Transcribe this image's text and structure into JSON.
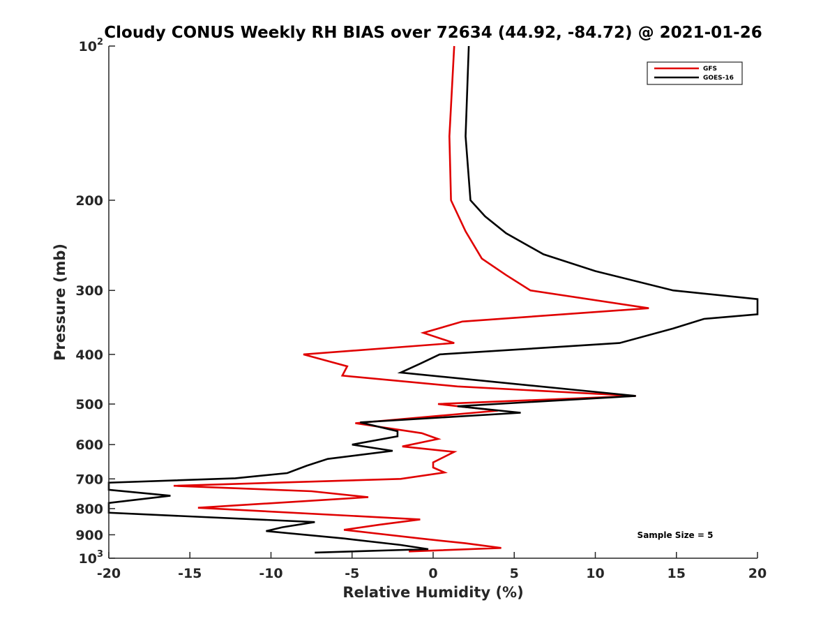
{
  "chart_data": {
    "type": "line",
    "title": "Cloudy CONUS Weekly RH BIAS over 72634 (44.92, -84.72) @ 2021-01-26",
    "xlabel": "Relative Humidity (%)",
    "ylabel": "Pressure (mb)",
    "xlim": [
      -20,
      20
    ],
    "ylim": [
      100,
      1000
    ],
    "y_scale": "log",
    "y_reversed": true,
    "x_ticks": [
      "-20",
      "-15",
      "-10",
      "-5",
      "0",
      "5",
      "10",
      "15",
      "20"
    ],
    "y_ticks": [
      {
        "value": 100,
        "label": "10",
        "exp": "2"
      },
      {
        "value": 200,
        "label": "200",
        "exp": ""
      },
      {
        "value": 300,
        "label": "300",
        "exp": ""
      },
      {
        "value": 400,
        "label": "400",
        "exp": ""
      },
      {
        "value": 500,
        "label": "500",
        "exp": ""
      },
      {
        "value": 600,
        "label": "600",
        "exp": ""
      },
      {
        "value": 700,
        "label": "700",
        "exp": ""
      },
      {
        "value": 800,
        "label": "800",
        "exp": ""
      },
      {
        "value": 900,
        "label": "900",
        "exp": ""
      },
      {
        "value": 1000,
        "label": "10",
        "exp": "3"
      }
    ],
    "grid": false,
    "legend_position": "top-right",
    "series": [
      {
        "name": "GFS",
        "color": "#e00000",
        "points": [
          {
            "x": 1.3,
            "y": 100
          },
          {
            "x": 1.0,
            "y": 150
          },
          {
            "x": 1.1,
            "y": 200
          },
          {
            "x": 2.0,
            "y": 230
          },
          {
            "x": 3.0,
            "y": 260
          },
          {
            "x": 4.5,
            "y": 280
          },
          {
            "x": 6.0,
            "y": 300
          },
          {
            "x": 13.3,
            "y": 325
          },
          {
            "x": 1.8,
            "y": 345
          },
          {
            "x": -0.6,
            "y": 363
          },
          {
            "x": 1.3,
            "y": 380
          },
          {
            "x": -8.0,
            "y": 400
          },
          {
            "x": -5.3,
            "y": 422
          },
          {
            "x": -5.6,
            "y": 440
          },
          {
            "x": 1.5,
            "y": 462
          },
          {
            "x": 12.5,
            "y": 482
          },
          {
            "x": 0.3,
            "y": 500
          },
          {
            "x": 4.0,
            "y": 515
          },
          {
            "x": -4.8,
            "y": 545
          },
          {
            "x": -0.7,
            "y": 570
          },
          {
            "x": 0.3,
            "y": 585
          },
          {
            "x": -1.9,
            "y": 605
          },
          {
            "x": 1.3,
            "y": 620
          },
          {
            "x": 0.0,
            "y": 650
          },
          {
            "x": 0.0,
            "y": 665
          },
          {
            "x": 0.7,
            "y": 680
          },
          {
            "x": -2.0,
            "y": 700
          },
          {
            "x": -16.0,
            "y": 722
          },
          {
            "x": -7.5,
            "y": 740
          },
          {
            "x": -4.0,
            "y": 760
          },
          {
            "x": -14.5,
            "y": 797
          },
          {
            "x": -0.8,
            "y": 840
          },
          {
            "x": -3.3,
            "y": 860
          },
          {
            "x": -5.5,
            "y": 880
          },
          {
            "x": -0.8,
            "y": 915
          },
          {
            "x": 2.0,
            "y": 935
          },
          {
            "x": 4.2,
            "y": 955
          },
          {
            "x": -1.5,
            "y": 970
          }
        ]
      },
      {
        "name": "GOES-16",
        "color": "#000000",
        "points": [
          {
            "x": 2.2,
            "y": 100
          },
          {
            "x": 2.0,
            "y": 150
          },
          {
            "x": 2.3,
            "y": 200
          },
          {
            "x": 3.2,
            "y": 215
          },
          {
            "x": 4.5,
            "y": 232
          },
          {
            "x": 6.8,
            "y": 255
          },
          {
            "x": 10.0,
            "y": 275
          },
          {
            "x": 14.8,
            "y": 300
          },
          {
            "x": 20.0,
            "y": 312
          },
          {
            "x": 20.0,
            "y": 334
          },
          {
            "x": 16.7,
            "y": 341
          },
          {
            "x": 14.8,
            "y": 356
          },
          {
            "x": 11.5,
            "y": 380
          },
          {
            "x": 0.4,
            "y": 400
          },
          {
            "x": -0.8,
            "y": 417
          },
          {
            "x": -2.0,
            "y": 434
          },
          {
            "x": 12.5,
            "y": 482
          },
          {
            "x": 1.5,
            "y": 505
          },
          {
            "x": 5.4,
            "y": 520
          },
          {
            "x": -4.5,
            "y": 543
          },
          {
            "x": -2.2,
            "y": 565
          },
          {
            "x": -2.2,
            "y": 578
          },
          {
            "x": -5.0,
            "y": 600
          },
          {
            "x": -2.5,
            "y": 617
          },
          {
            "x": -6.5,
            "y": 640
          },
          {
            "x": -7.8,
            "y": 660
          },
          {
            "x": -9.0,
            "y": 682
          },
          {
            "x": -12.2,
            "y": 698
          },
          {
            "x": -20.0,
            "y": 712
          },
          {
            "x": -20.0,
            "y": 735
          },
          {
            "x": -16.2,
            "y": 755
          },
          {
            "x": -20.0,
            "y": 780
          },
          {
            "x": -20.0,
            "y": 815
          },
          {
            "x": -7.3,
            "y": 850
          },
          {
            "x": -9.3,
            "y": 870
          },
          {
            "x": -10.3,
            "y": 885
          },
          {
            "x": -5.5,
            "y": 915
          },
          {
            "x": -2.0,
            "y": 942
          },
          {
            "x": -0.3,
            "y": 960
          },
          {
            "x": -7.3,
            "y": 975
          }
        ]
      }
    ],
    "legend": [
      {
        "label": "GFS",
        "color": "#e00000"
      },
      {
        "label": "GOES-16",
        "color": "#000000"
      }
    ],
    "annotations": [
      {
        "text": "Sample Size = 5",
        "position": "bottom-right"
      }
    ]
  }
}
